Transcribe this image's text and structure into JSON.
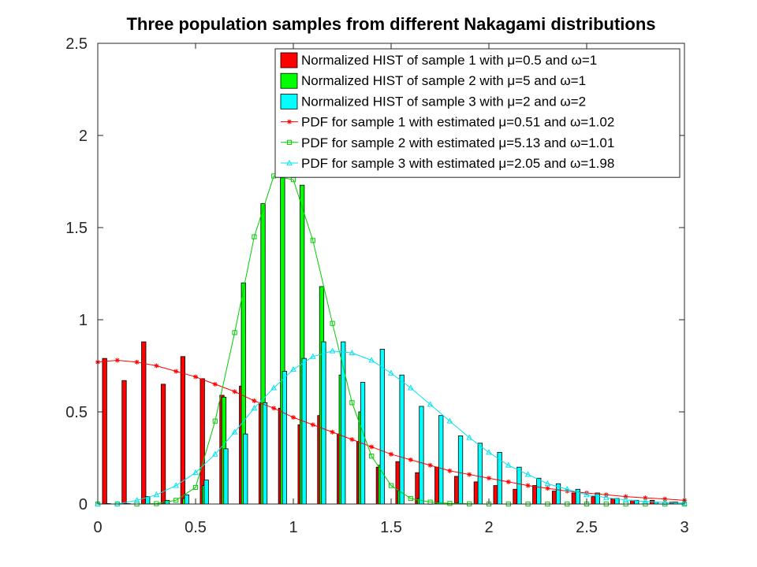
{
  "chart_data": {
    "type": "bar",
    "title": "Three population samples from different Nakagami distributions",
    "xlabel": "",
    "ylabel": "",
    "xlim": [
      0,
      3
    ],
    "ylim": [
      0,
      2.5
    ],
    "x_ticks": [
      "0",
      "0.5",
      "1",
      "1.5",
      "2",
      "2.5",
      "3"
    ],
    "y_ticks": [
      "0",
      "0.5",
      "1",
      "1.5",
      "2",
      "2.5"
    ],
    "grid": false,
    "legend_position": "top-right",
    "bar_series": [
      {
        "name": "Normalized HIST of sample 1 with μ=0.5 and ω=1",
        "color": "#ff0000",
        "x": [
          0.035,
          0.135,
          0.235,
          0.335,
          0.435,
          0.535,
          0.635,
          0.735,
          0.835,
          0.935,
          1.035,
          1.135,
          1.235,
          1.335,
          1.435,
          1.535,
          1.635,
          1.735,
          1.835,
          1.935,
          2.035,
          2.135,
          2.235,
          2.335,
          2.435,
          2.535,
          2.635,
          2.735,
          2.835,
          2.935
        ],
        "values": [
          0.79,
          0.67,
          0.88,
          0.65,
          0.8,
          0.68,
          0.59,
          0.64,
          0.55,
          0.52,
          0.43,
          0.48,
          0.38,
          0.34,
          0.2,
          0.23,
          0.17,
          0.2,
          0.15,
          0.12,
          0.1,
          0.08,
          0.1,
          0.07,
          0.06,
          0.04,
          0.03,
          0.02,
          0.02,
          0.01
        ]
      },
      {
        "name": "Normalized HIST of sample 2 with μ=5 and ω=1",
        "color": "#00ff00",
        "x": [
          0.045,
          0.145,
          0.245,
          0.345,
          0.445,
          0.545,
          0.645,
          0.745,
          0.845,
          0.945,
          1.045,
          1.145,
          1.245,
          1.345,
          1.445,
          1.545,
          1.645,
          1.745,
          1.845,
          1.945,
          2.045,
          2.145
        ],
        "values": [
          0.0,
          0.0,
          0.0,
          0.005,
          0.03,
          0.1,
          0.58,
          1.2,
          1.63,
          1.77,
          1.73,
          1.18,
          0.7,
          0.5,
          0.21,
          0.07,
          0.03,
          0.01,
          0.005,
          0.002,
          0.0,
          0.0
        ]
      },
      {
        "name": "Normalized HIST of sample 3 with μ=2 and ω=2",
        "color": "#00ffff",
        "x": [
          0.055,
          0.155,
          0.255,
          0.355,
          0.455,
          0.555,
          0.655,
          0.755,
          0.855,
          0.955,
          1.055,
          1.155,
          1.255,
          1.355,
          1.455,
          1.555,
          1.655,
          1.755,
          1.855,
          1.955,
          2.055,
          2.155,
          2.255,
          2.355,
          2.455,
          2.555,
          2.655,
          2.755,
          2.855,
          2.955
        ],
        "values": [
          0.0,
          0.0,
          0.04,
          0.02,
          0.05,
          0.13,
          0.3,
          0.38,
          0.55,
          0.72,
          0.79,
          0.88,
          0.88,
          0.66,
          0.84,
          0.7,
          0.53,
          0.48,
          0.37,
          0.33,
          0.28,
          0.2,
          0.14,
          0.11,
          0.08,
          0.06,
          0.03,
          0.02,
          0.01,
          0.01
        ]
      }
    ],
    "line_series": [
      {
        "name": "PDF for sample 1 with estimated μ=0.51 and ω=1.02",
        "color": "#ff0000",
        "marker": "star",
        "x": [
          0.0,
          0.1,
          0.2,
          0.3,
          0.4,
          0.5,
          0.6,
          0.7,
          0.8,
          0.9,
          1.0,
          1.1,
          1.2,
          1.3,
          1.4,
          1.5,
          1.6,
          1.7,
          1.8,
          1.9,
          2.0,
          2.1,
          2.2,
          2.3,
          2.4,
          2.5,
          2.6,
          2.7,
          2.8,
          2.9,
          3.0
        ],
        "values": [
          0.77,
          0.78,
          0.77,
          0.75,
          0.72,
          0.69,
          0.65,
          0.61,
          0.56,
          0.52,
          0.47,
          0.43,
          0.39,
          0.35,
          0.31,
          0.27,
          0.24,
          0.21,
          0.18,
          0.16,
          0.14,
          0.12,
          0.1,
          0.085,
          0.07,
          0.06,
          0.05,
          0.04,
          0.033,
          0.027,
          0.02
        ]
      },
      {
        "name": "PDF for sample 2 with estimated μ=5.13 and ω=1.01",
        "color": "#00cc00",
        "marker": "square",
        "x": [
          0.0,
          0.1,
          0.2,
          0.3,
          0.4,
          0.5,
          0.6,
          0.7,
          0.8,
          0.9,
          1.0,
          1.1,
          1.2,
          1.3,
          1.4,
          1.5,
          1.6,
          1.7,
          1.8,
          1.9,
          2.0,
          2.1,
          2.2,
          2.3,
          2.4,
          2.5,
          2.6,
          2.7,
          2.8,
          2.9,
          3.0
        ],
        "values": [
          0.0,
          0.0,
          0.0,
          0.002,
          0.02,
          0.09,
          0.45,
          0.93,
          1.45,
          1.78,
          1.76,
          1.43,
          0.98,
          0.55,
          0.26,
          0.1,
          0.03,
          0.01,
          0.003,
          0.001,
          0.0,
          0.0,
          0.0,
          0.0,
          0.0,
          0.0,
          0.0,
          0.0,
          0.0,
          0.0,
          0.0
        ]
      },
      {
        "name": "PDF for sample 3 with estimated μ=2.05 and ω=1.98",
        "color": "#00e5ee",
        "marker": "triangle",
        "x": [
          0.0,
          0.1,
          0.2,
          0.3,
          0.4,
          0.5,
          0.6,
          0.7,
          0.8,
          0.9,
          1.0,
          1.1,
          1.2,
          1.3,
          1.4,
          1.5,
          1.6,
          1.7,
          1.8,
          1.9,
          2.0,
          2.1,
          2.2,
          2.3,
          2.4,
          2.5,
          2.6,
          2.7,
          2.8,
          2.9,
          3.0
        ],
        "values": [
          0.0,
          0.0,
          0.02,
          0.05,
          0.1,
          0.17,
          0.27,
          0.39,
          0.52,
          0.63,
          0.73,
          0.8,
          0.83,
          0.82,
          0.78,
          0.71,
          0.63,
          0.54,
          0.45,
          0.36,
          0.28,
          0.21,
          0.16,
          0.11,
          0.08,
          0.05,
          0.035,
          0.022,
          0.014,
          0.008,
          0.005
        ]
      }
    ]
  }
}
